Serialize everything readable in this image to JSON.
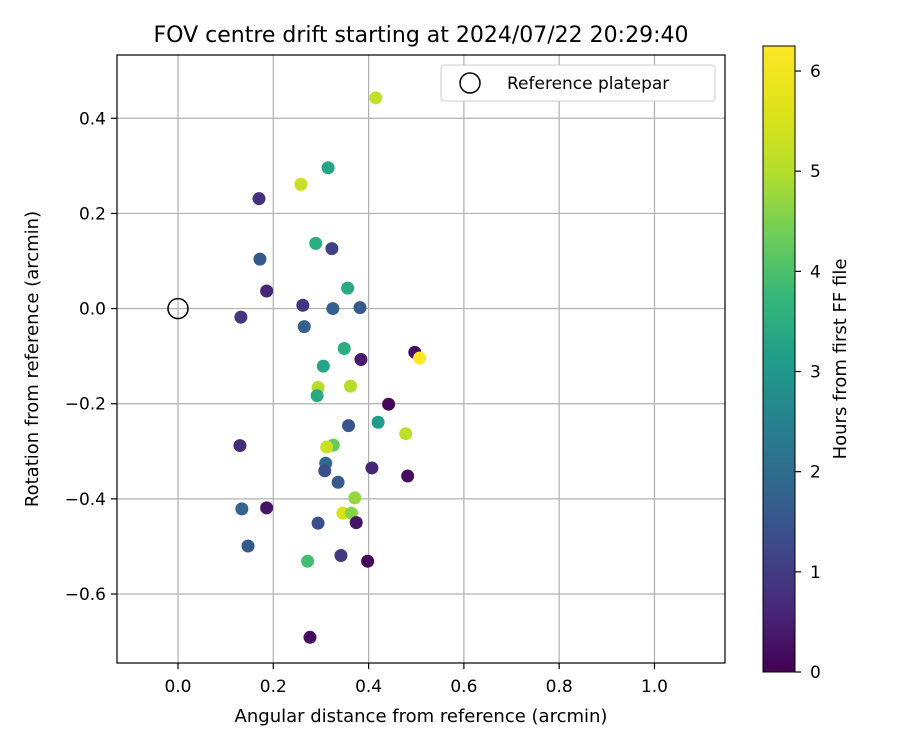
{
  "chart_data": {
    "type": "scatter",
    "title": "FOV centre drift starting at 2024/07/22 20:29:40",
    "xlabel": "Angular distance from reference (arcmin)",
    "ylabel": "Rotation from reference (arcmin)",
    "xlim": [
      -0.128,
      1.148
    ],
    "ylim": [
      -0.745,
      0.533
    ],
    "xticks": [
      0.0,
      0.2,
      0.4,
      0.6,
      0.8,
      1.0
    ],
    "xtick_labels": [
      "0.0",
      "0.2",
      "0.4",
      "0.6",
      "0.8",
      "1.0"
    ],
    "yticks": [
      -0.6,
      -0.4,
      -0.2,
      0.0,
      0.2,
      0.4
    ],
    "ytick_labels": [
      "−0.6",
      "−0.4",
      "−0.2",
      "0.0",
      "0.2",
      "0.4"
    ],
    "grid": true,
    "legend": {
      "position": "top-right",
      "entries": [
        "Reference platepar"
      ]
    },
    "reference_point": {
      "x": 0.0,
      "y": 0.0
    },
    "colorbar": {
      "label": "Hours from first FF file",
      "colormap": "viridis",
      "range": [
        0,
        6.25
      ],
      "ticks": [
        0,
        1,
        2,
        3,
        4,
        5,
        6
      ],
      "tick_labels": [
        "0",
        "1",
        "2",
        "3",
        "4",
        "5",
        "6"
      ]
    },
    "points": [
      {
        "x": 0.415,
        "y": 0.443,
        "c": 5.2
      },
      {
        "x": 0.315,
        "y": 0.296,
        "c": 3.3
      },
      {
        "x": 0.258,
        "y": 0.261,
        "c": 5.3
      },
      {
        "x": 0.17,
        "y": 0.231,
        "c": 0.8
      },
      {
        "x": 0.289,
        "y": 0.137,
        "c": 3.5
      },
      {
        "x": 0.323,
        "y": 0.126,
        "c": 1.1
      },
      {
        "x": 0.172,
        "y": 0.104,
        "c": 1.6
      },
      {
        "x": 0.186,
        "y": 0.037,
        "c": 0.6
      },
      {
        "x": 0.356,
        "y": 0.043,
        "c": 3.4
      },
      {
        "x": 0.262,
        "y": 0.007,
        "c": 0.9
      },
      {
        "x": 0.325,
        "y": 0.0,
        "c": 1.7
      },
      {
        "x": 0.382,
        "y": 0.002,
        "c": 1.6
      },
      {
        "x": 0.132,
        "y": -0.018,
        "c": 0.9
      },
      {
        "x": 0.265,
        "y": -0.038,
        "c": 1.7
      },
      {
        "x": 0.349,
        "y": -0.084,
        "c": 3.5
      },
      {
        "x": 0.497,
        "y": -0.092,
        "c": 0.2
      },
      {
        "x": 0.507,
        "y": -0.104,
        "c": 6.2
      },
      {
        "x": 0.384,
        "y": -0.107,
        "c": 0.4
      },
      {
        "x": 0.305,
        "y": -0.121,
        "c": 3.3
      },
      {
        "x": 0.294,
        "y": -0.166,
        "c": 5.0
      },
      {
        "x": 0.362,
        "y": -0.163,
        "c": 5.0
      },
      {
        "x": 0.292,
        "y": -0.183,
        "c": 3.4
      },
      {
        "x": 0.442,
        "y": -0.201,
        "c": 0.1
      },
      {
        "x": 0.42,
        "y": -0.239,
        "c": 3.1
      },
      {
        "x": 0.358,
        "y": -0.246,
        "c": 1.5
      },
      {
        "x": 0.478,
        "y": -0.263,
        "c": 5.1
      },
      {
        "x": 0.13,
        "y": -0.288,
        "c": 0.7
      },
      {
        "x": 0.326,
        "y": -0.287,
        "c": 4.3
      },
      {
        "x": 0.312,
        "y": -0.291,
        "c": 5.3
      },
      {
        "x": 0.31,
        "y": -0.325,
        "c": 1.9
      },
      {
        "x": 0.308,
        "y": -0.341,
        "c": 1.4
      },
      {
        "x": 0.407,
        "y": -0.335,
        "c": 0.6
      },
      {
        "x": 0.482,
        "y": -0.352,
        "c": 0.2
      },
      {
        "x": 0.336,
        "y": -0.365,
        "c": 1.6
      },
      {
        "x": 0.371,
        "y": -0.398,
        "c": 4.7
      },
      {
        "x": 0.186,
        "y": -0.419,
        "c": 0.3
      },
      {
        "x": 0.134,
        "y": -0.421,
        "c": 1.8
      },
      {
        "x": 0.346,
        "y": -0.43,
        "c": 5.5
      },
      {
        "x": 0.364,
        "y": -0.43,
        "c": 4.6
      },
      {
        "x": 0.374,
        "y": -0.45,
        "c": 0.3
      },
      {
        "x": 0.294,
        "y": -0.451,
        "c": 1.4
      },
      {
        "x": 0.147,
        "y": -0.499,
        "c": 1.6
      },
      {
        "x": 0.342,
        "y": -0.519,
        "c": 0.9
      },
      {
        "x": 0.398,
        "y": -0.531,
        "c": 0.1
      },
      {
        "x": 0.272,
        "y": -0.531,
        "c": 3.9
      },
      {
        "x": 0.277,
        "y": -0.691,
        "c": 0.2
      }
    ]
  }
}
